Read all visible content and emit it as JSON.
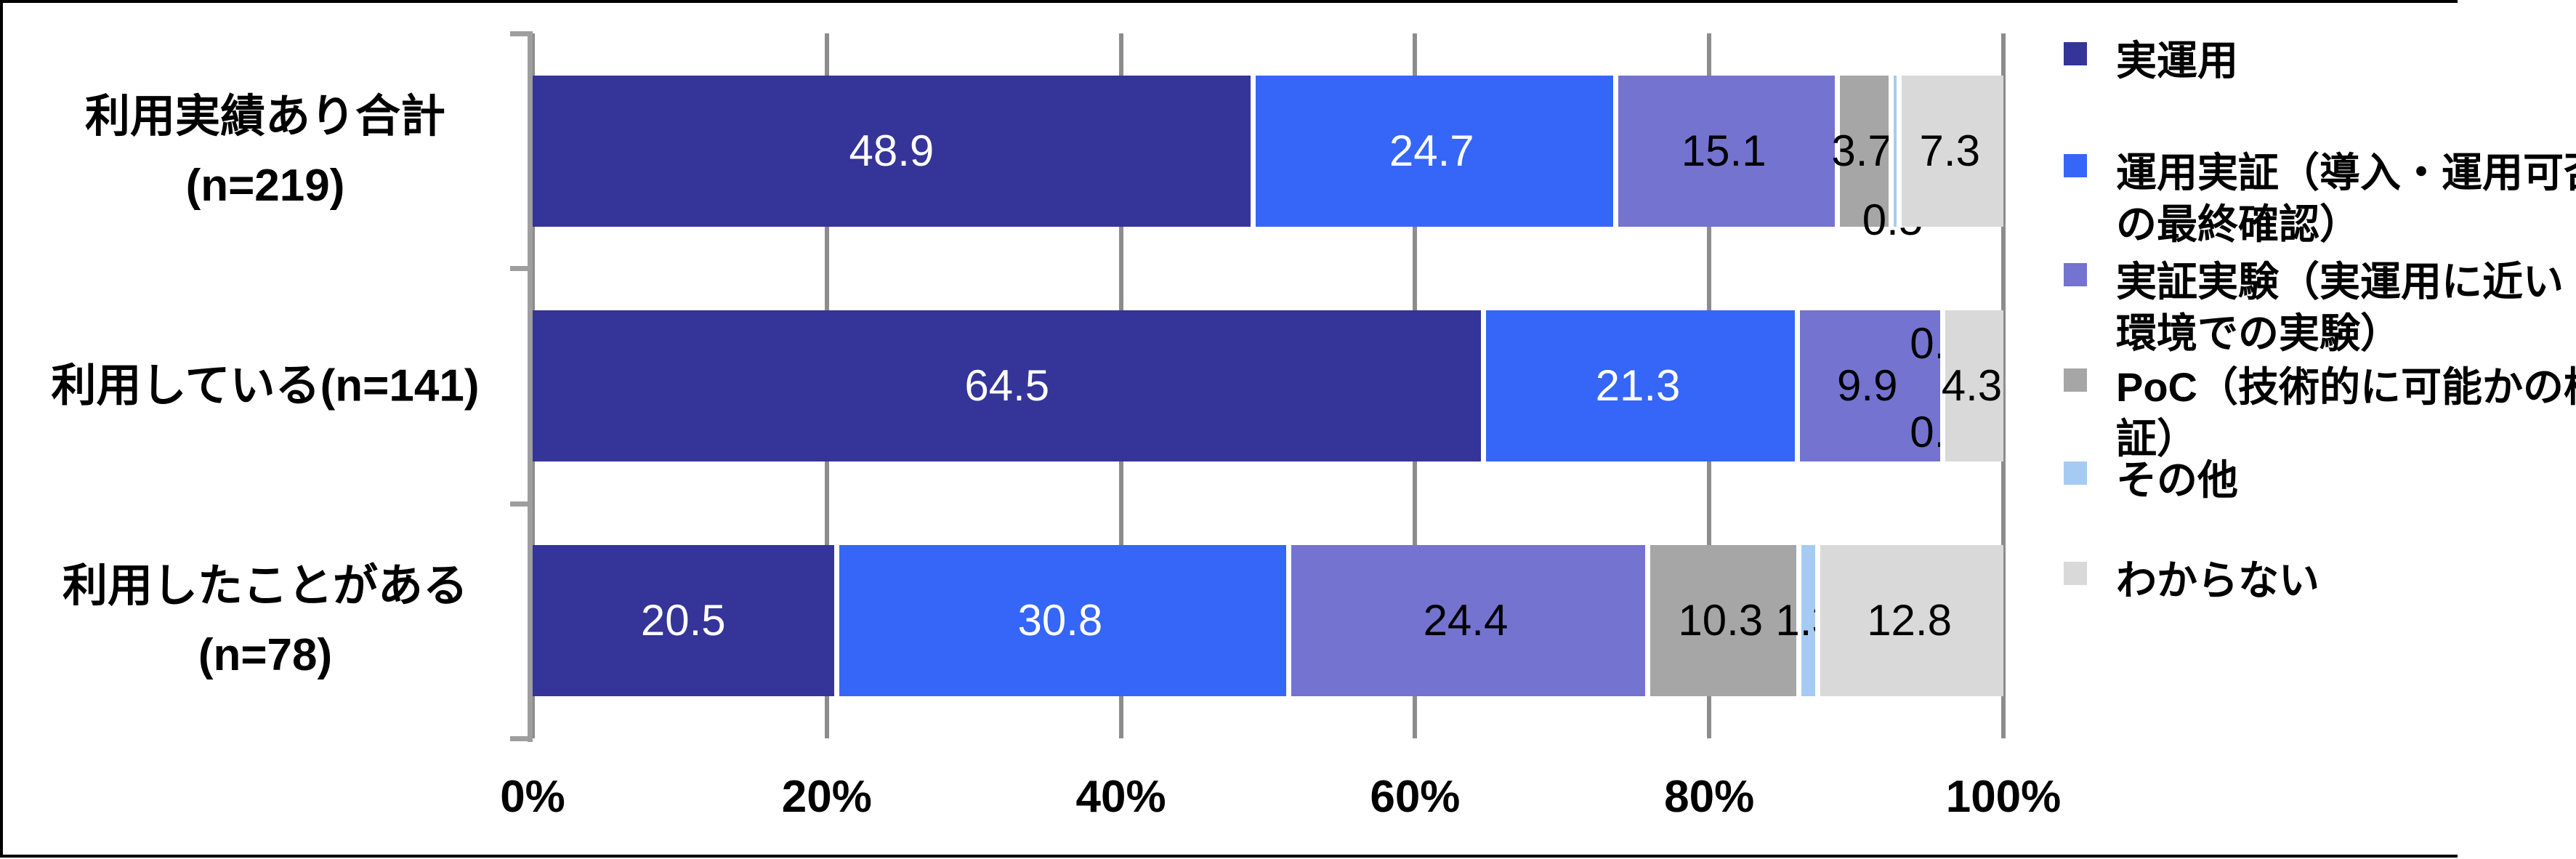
{
  "chart_data": {
    "type": "bar",
    "variant": "horizontal-stacked-100",
    "title": "",
    "categories": [
      {
        "label_lines": [
          "利用実績あり合計",
          "(n=219)"
        ]
      },
      {
        "label_lines": [
          "利用している(n=141)"
        ]
      },
      {
        "label_lines": [
          "利用したことがある",
          "(n=78)"
        ]
      }
    ],
    "series": [
      {
        "name": "実運用",
        "legend_lines": [
          "実運用"
        ],
        "color": "#343499",
        "label_color": "#FFFFFF",
        "values": [
          48.9,
          64.5,
          20.5
        ]
      },
      {
        "name": "運用実証（導入・運用可否の最終確認）",
        "legend_lines": [
          "運用実証（導入・運用可否",
          "の最終確認）"
        ],
        "color": "#3566F8",
        "label_color": "#FFFFFF",
        "values": [
          24.7,
          21.3,
          30.8
        ]
      },
      {
        "name": "実証実験（実運用に近い環境での実験）",
        "legend_lines": [
          "実証実験（実運用に近い",
          "環境での実験）"
        ],
        "color": "#7473D0",
        "label_color": "#000000",
        "values": [
          15.1,
          9.9,
          24.4
        ]
      },
      {
        "name": "PoC（技術的に可能かの検証）",
        "legend_lines": [
          "PoC（技術的に可能かの検",
          "証）"
        ],
        "color": "#A6A6A6",
        "label_color": "#000000",
        "values": [
          3.7,
          0.0,
          10.3
        ]
      },
      {
        "name": "その他",
        "legend_lines": [
          "その他"
        ],
        "color": "#A5CBF2",
        "label_color": "#000000",
        "values": [
          0.5,
          0.0,
          1.3
        ]
      },
      {
        "name": "わからない",
        "legend_lines": [
          "わからない"
        ],
        "color": "#D9D9D9",
        "label_color": "#000000",
        "values": [
          7.3,
          4.3,
          12.8
        ]
      }
    ],
    "x_axis": {
      "tick_labels": [
        "0%",
        "20%",
        "40%",
        "60%",
        "80%",
        "100%"
      ],
      "min": 0,
      "max": 100,
      "gridlines": true
    },
    "legend_position": "right",
    "label_offsets": [
      {
        "row": 0,
        "series": 4,
        "dy": 95
      },
      {
        "row": 1,
        "series": 3,
        "dy": -58
      },
      {
        "row": 1,
        "series": 4,
        "dy": 64
      }
    ]
  },
  "styles": {
    "background": "#FFFFFF",
    "gridline_color": "#8C8C8C",
    "axis_color": "#9E9E9E",
    "frame_color": "#000000",
    "separator_color": "#FFFFFF"
  }
}
